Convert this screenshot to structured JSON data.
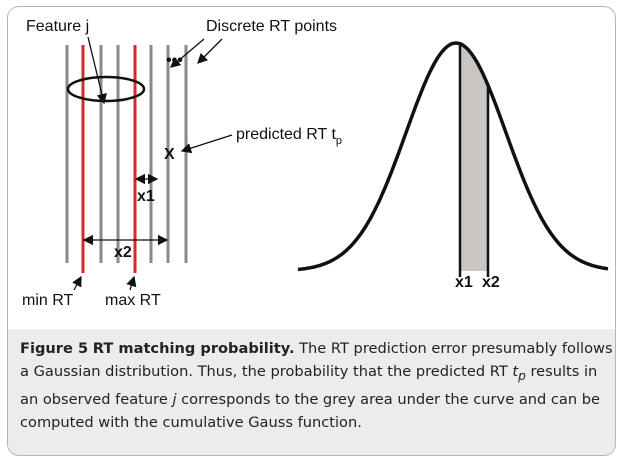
{
  "figure": {
    "left": {
      "feature_label": "Feature j",
      "points_label": "Discrete RT points",
      "dots": "•••",
      "x_mark": "X",
      "predicted_label": "predicted RT t",
      "predicted_sub": "p",
      "x1_label": "x1",
      "x2_label": "x2",
      "min_label": "min RT",
      "max_label": "max RT"
    },
    "right": {
      "x1_label": "x1",
      "x2_label": "x2"
    }
  },
  "caption": {
    "label": "Figure 5",
    "title": "RT matching probability.",
    "segments": [
      "The RT prediction error presumably follows a Gaussian distribution. Thus, the probability that the predicted RT ",
      "t",
      "p",
      " results in an observed feature ",
      "j",
      " corresponds to the grey area under the curve and can be computed with the cumulative Gauss function."
    ]
  }
}
